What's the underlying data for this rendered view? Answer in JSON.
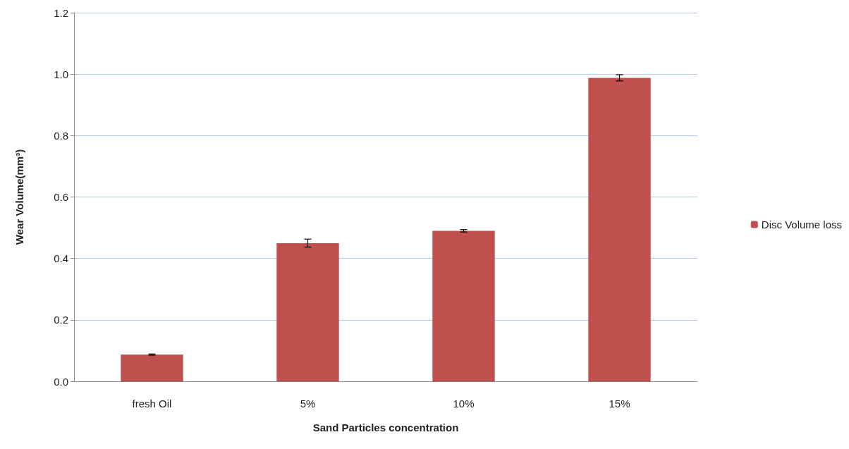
{
  "chart_data": {
    "type": "bar",
    "xlabel": "Sand Particles concentration",
    "ylabel": "Wear Volume(mm³)",
    "categories": [
      "fresh Oil",
      "5%",
      "10%",
      "15%"
    ],
    "series": [
      {
        "name": "Disc Volume loss",
        "color": "#c0504d",
        "values": [
          0.087,
          0.45,
          0.49,
          0.988
        ],
        "errors": [
          0.002,
          0.013,
          0.004,
          0.01
        ]
      }
    ],
    "ylim": [
      0,
      1.2
    ],
    "yticks": [
      {
        "value": 0,
        "label": "0.0"
      },
      {
        "value": 0.2,
        "label": "0.2"
      },
      {
        "value": 0.4,
        "label": "0.4"
      },
      {
        "value": 0.6,
        "label": "0.6"
      },
      {
        "value": 0.8,
        "label": "0.8"
      },
      {
        "value": 1,
        "label": "1.0"
      },
      {
        "value": 1.2,
        "label": "1.2"
      }
    ],
    "grid": "y",
    "legend": "right"
  }
}
